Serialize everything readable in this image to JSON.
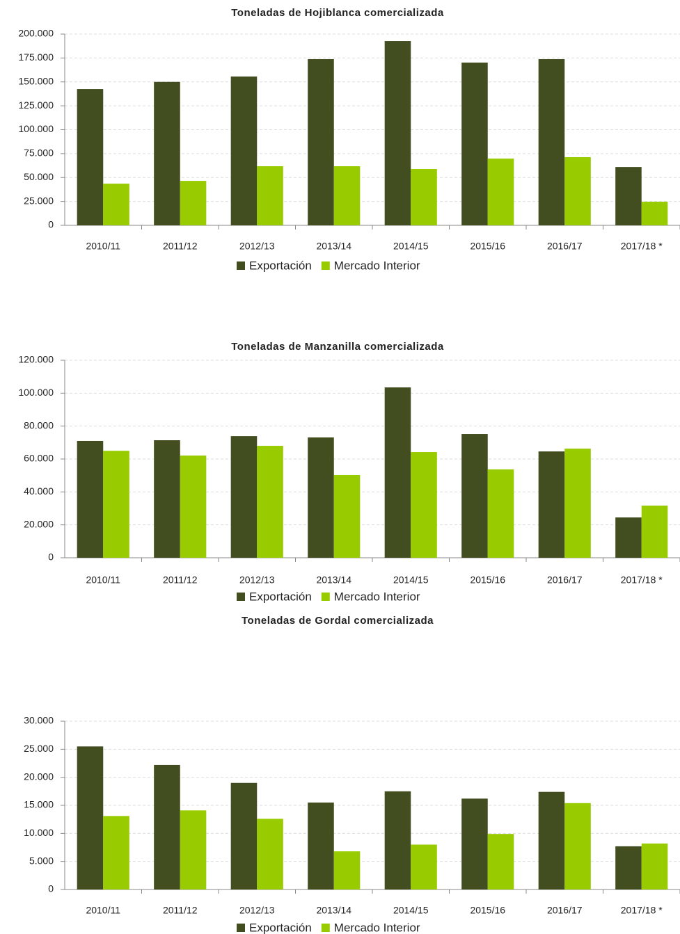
{
  "chart_data": [
    {
      "type": "bar",
      "title": "Toneladas de Hojiblanca comercializada",
      "categories": [
        "2010/11",
        "2011/12",
        "2012/13",
        "2013/14",
        "2014/15",
        "2015/16",
        "2016/17",
        "2017/18 *"
      ],
      "series": [
        {
          "name": "Exportación",
          "color": "#434e20",
          "values": [
            142500,
            150000,
            155600,
            173800,
            192700,
            170200,
            173800,
            61000
          ]
        },
        {
          "name": "Mercado Interior",
          "color": "#99cc00",
          "values": [
            43600,
            46500,
            61800,
            61800,
            58900,
            69800,
            71300,
            24700
          ]
        }
      ],
      "ylim": [
        0,
        200000
      ],
      "yticks": [
        0,
        {
          "value": 25000,
          "label": "25.000"
        },
        {
          "value": 50000,
          "label": "50.000"
        },
        {
          "value": 75000,
          "label": "75.000"
        },
        {
          "value": 100000,
          "label": "100.000"
        },
        {
          "value": 125000,
          "label": "125.000"
        },
        {
          "value": 150000,
          "label": "150.000"
        },
        {
          "value": 175000,
          "label": "175.000"
        },
        {
          "value": 200000,
          "label": "200.000"
        }
      ],
      "grid": true,
      "legend": "bottom"
    },
    {
      "type": "bar",
      "title": "Toneladas de Manzanilla comercializada",
      "categories": [
        "2010/11",
        "2011/12",
        "2012/13",
        "2013/14",
        "2014/15",
        "2015/16",
        "2016/17",
        "2017/18 *"
      ],
      "series": [
        {
          "name": "Exportación",
          "color": "#434e20",
          "values": [
            71000,
            71400,
            73900,
            73100,
            103500,
            75200,
            64600,
            24500
          ]
        },
        {
          "name": "Mercado Interior",
          "color": "#99cc00",
          "values": [
            65000,
            62100,
            68000,
            50300,
            64200,
            53700,
            66300,
            31700
          ]
        }
      ],
      "ylim": [
        0,
        120000
      ],
      "yticks": [
        0,
        {
          "value": 20000,
          "label": "20.000"
        },
        {
          "value": 40000,
          "label": "40.000"
        },
        {
          "value": 60000,
          "label": "60.000"
        },
        {
          "value": 80000,
          "label": "80.000"
        },
        {
          "value": 100000,
          "label": "100.000"
        },
        {
          "value": 120000,
          "label": "120.000"
        }
      ],
      "grid": true,
      "legend": "bottom"
    },
    {
      "type": "bar",
      "title": "Toneladas de Gordal comercializada",
      "categories": [
        "2010/11",
        "2011/12",
        "2012/13",
        "2013/14",
        "2014/15",
        "2015/16",
        "2016/17",
        "2017/18 *"
      ],
      "series": [
        {
          "name": "Exportación",
          "color": "#434e20",
          "values": [
            25500,
            22200,
            19000,
            15500,
            17500,
            16200,
            17400,
            7700
          ]
        },
        {
          "name": "Mercado Interior",
          "color": "#99cc00",
          "values": [
            13100,
            14100,
            12600,
            6800,
            8000,
            9900,
            15400,
            8200
          ]
        }
      ],
      "ylim": [
        0,
        30000
      ],
      "yticks": [
        0,
        {
          "value": 5000,
          "label": "5.000"
        },
        {
          "value": 10000,
          "label": "10.000"
        },
        {
          "value": 15000,
          "label": "15.000"
        },
        {
          "value": 20000,
          "label": "20.000"
        },
        {
          "value": 25000,
          "label": "25.000"
        },
        {
          "value": 30000,
          "label": "30.000"
        }
      ],
      "grid": true,
      "legend": "bottom"
    }
  ]
}
